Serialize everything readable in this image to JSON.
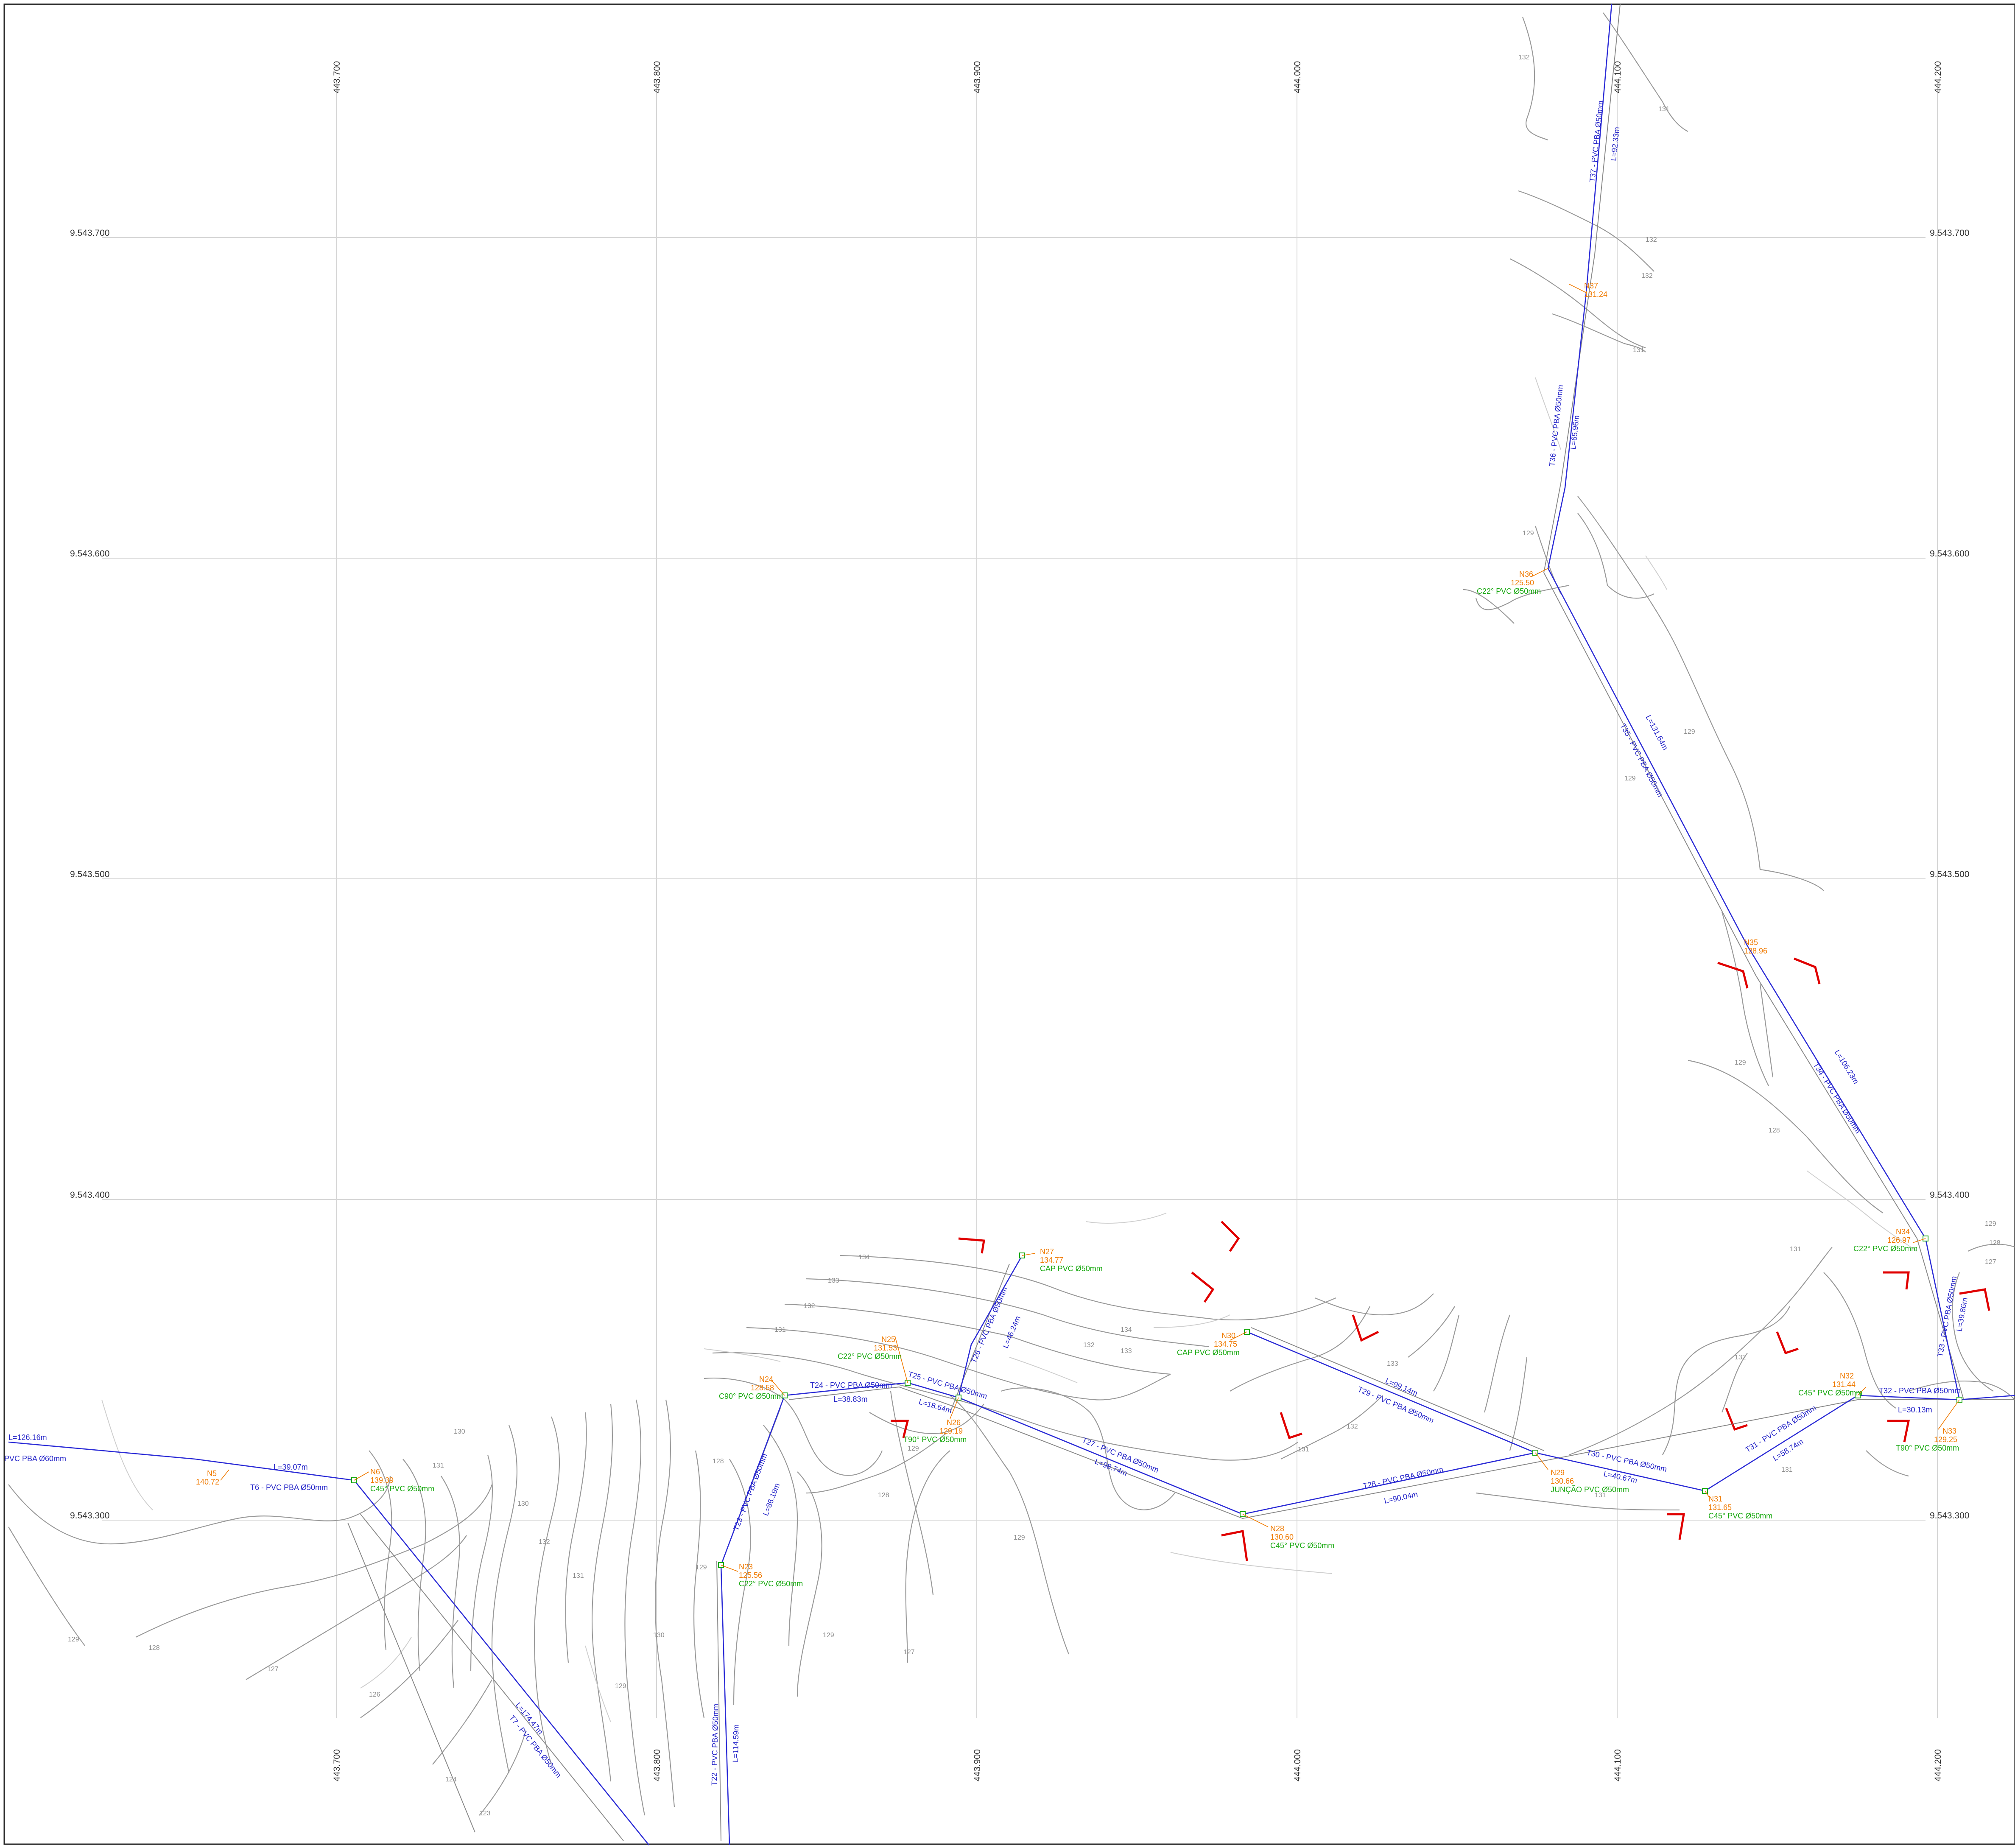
{
  "grid": {
    "x_labels": [
      "443.700",
      "443.800",
      "443.900",
      "444.000",
      "444.100",
      "444.200"
    ],
    "y_labels": [
      "9.543.700",
      "9.543.600",
      "9.543.500",
      "9.543.400",
      "9.543.300"
    ]
  },
  "contour_labels": [
    "134",
    "133",
    "132",
    "131",
    "130",
    "129",
    "128",
    "127",
    "126",
    "125",
    "124",
    "123"
  ],
  "pipes": [
    {
      "id": "T6a",
      "name": "PVC PBA Ø60mm",
      "length": "L=126.16m"
    },
    {
      "id": "T6",
      "name": "T6 - PVC PBA Ø50mm",
      "length": "L=39.07m"
    },
    {
      "id": "T7",
      "name": "T7 - PVC PBA Ø50mm",
      "length": "L=174.47m"
    },
    {
      "id": "T22",
      "name": "T22 - PVC PBA Ø50mm",
      "length": "L=114.59m"
    },
    {
      "id": "T23",
      "name": "T23 - PVC PBA Ø50mm",
      "length": "L=86.19m"
    },
    {
      "id": "T24",
      "name": "T24 - PVC PBA Ø50mm",
      "length": "L=38.83m"
    },
    {
      "id": "T25",
      "name": "T25 - PVC PBA Ø50mm",
      "length": "L=18.64m"
    },
    {
      "id": "T26",
      "name": "T26 - PVC PBA Ø50mm",
      "length": "L=46.24m"
    },
    {
      "id": "T27",
      "name": "T27 - PVC PBA Ø50mm",
      "length": "L=98.74m"
    },
    {
      "id": "T28",
      "name": "T28 - PVC PBA Ø50mm",
      "length": "L=90.04m"
    },
    {
      "id": "T29",
      "name": "T29 - PVC PBA Ø50mm",
      "length": "L=99.14m"
    },
    {
      "id": "T30",
      "name": "T30 - PVC PBA Ø50mm",
      "length": "L=40.67m"
    },
    {
      "id": "T31",
      "name": "T31 - PVC PBA Ø50mm",
      "length": "L=58.74m"
    },
    {
      "id": "T32",
      "name": "T32 - PVC PBA Ø50mm",
      "length": "L=30.13m"
    },
    {
      "id": "T33",
      "name": "T33 - PVC PBA Ø50mm",
      "length": "L=39.86m"
    },
    {
      "id": "T34",
      "name": "T34 - PVC PBA Ø50mm",
      "length": "L=106.23m"
    },
    {
      "id": "T35",
      "name": "T35 - PVC PBA Ø50mm",
      "length": "L=131.64m"
    },
    {
      "id": "T36",
      "name": "T36 - PVC PBA Ø50mm",
      "length": "L=65.96m"
    },
    {
      "id": "T37",
      "name": "T37 - PVC PBA Ø50mm",
      "length": "L=92.33m"
    }
  ],
  "nodes": [
    {
      "id": "N5",
      "elev": "140.72",
      "fitting": ""
    },
    {
      "id": "N6",
      "elev": "139.39",
      "fitting": "C45° PVC Ø50mm"
    },
    {
      "id": "N23",
      "elev": "125.56",
      "fitting": "C22° PVC Ø50mm"
    },
    {
      "id": "N24",
      "elev": "128.58",
      "fitting": "C90° PVC Ø50mm"
    },
    {
      "id": "N25",
      "elev": "131.53",
      "fitting": "C22° PVC Ø50mm"
    },
    {
      "id": "N26",
      "elev": "129.19",
      "fitting": "T90° PVC Ø50mm"
    },
    {
      "id": "N27",
      "elev": "134.77",
      "fitting": "CAP PVC Ø50mm"
    },
    {
      "id": "N28",
      "elev": "130.60",
      "fitting": "C45° PVC Ø50mm"
    },
    {
      "id": "N29",
      "elev": "130.66",
      "fitting": "JUNÇÃO PVC Ø50mm"
    },
    {
      "id": "N30",
      "elev": "134.75",
      "fitting": "CAP PVC Ø50mm"
    },
    {
      "id": "N31",
      "elev": "131.65",
      "fitting": "C45° PVC Ø50mm"
    },
    {
      "id": "N32",
      "elev": "131.44",
      "fitting": "C45° PVC Ø50mm"
    },
    {
      "id": "N33",
      "elev": "129.25",
      "fitting": "T90° PVC Ø50mm"
    },
    {
      "id": "N34",
      "elev": "126.97",
      "fitting": "C22° PVC Ø50mm"
    },
    {
      "id": "N35",
      "elev": "128.96",
      "fitting": ""
    },
    {
      "id": "N36",
      "elev": "125.50",
      "fitting": "C22° PVC Ø50mm"
    },
    {
      "id": "N37",
      "elev": "131.24",
      "fitting": ""
    }
  ],
  "colors": {
    "pipe": "#2b2bd6",
    "node_label": "#f07a00",
    "fitting_label": "#17a80f",
    "contour": "#9a9a9a",
    "house": "#e00000"
  }
}
